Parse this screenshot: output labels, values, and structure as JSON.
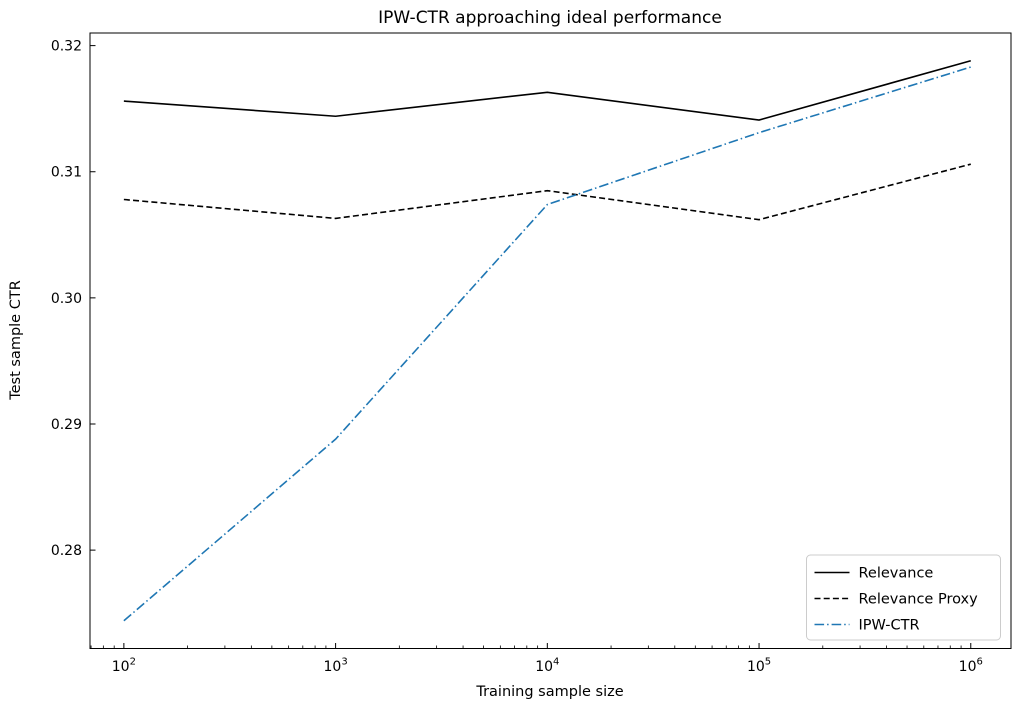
{
  "chart_data": {
    "type": "line",
    "title": "IPW-CTR approaching ideal performance",
    "xlabel": "Training sample size",
    "ylabel": "Test sample CTR",
    "x_scale": "log",
    "x": [
      100,
      1000,
      10000,
      100000,
      1000000
    ],
    "series": [
      {
        "name": "Relevance",
        "color": "#000000",
        "style": "solid",
        "values": [
          0.3156,
          0.3144,
          0.3163,
          0.3141,
          0.3188
        ]
      },
      {
        "name": "Relevance Proxy",
        "color": "#000000",
        "style": "dashed",
        "values": [
          0.3078,
          0.3063,
          0.3085,
          0.3062,
          0.3106
        ]
      },
      {
        "name": "IPW-CTR",
        "color": "#1f77b4",
        "style": "dashdot",
        "values": [
          0.2744,
          0.2888,
          0.3074,
          0.3131,
          0.3183
        ]
      }
    ],
    "xticks": [
      {
        "value": 100,
        "base": "10",
        "exp": "2"
      },
      {
        "value": 1000,
        "base": "10",
        "exp": "3"
      },
      {
        "value": 10000,
        "base": "10",
        "exp": "4"
      },
      {
        "value": 100000,
        "base": "10",
        "exp": "5"
      },
      {
        "value": 1000000,
        "base": "10",
        "exp": "6"
      }
    ],
    "yticks": [
      {
        "value": 0.28,
        "label": "0.28"
      },
      {
        "value": 0.29,
        "label": "0.29"
      },
      {
        "value": 0.3,
        "label": "0.30"
      },
      {
        "value": 0.31,
        "label": "0.31"
      },
      {
        "value": 0.32,
        "label": "0.32"
      }
    ],
    "xlim_log10": [
      1.84,
      6.19
    ],
    "ylim": [
      0.2722,
      0.321
    ],
    "grid": false,
    "legend_position": "lower right",
    "frame_color": "#000000",
    "background_color": "#ffffff",
    "legend_border_color": "#cccccc"
  }
}
